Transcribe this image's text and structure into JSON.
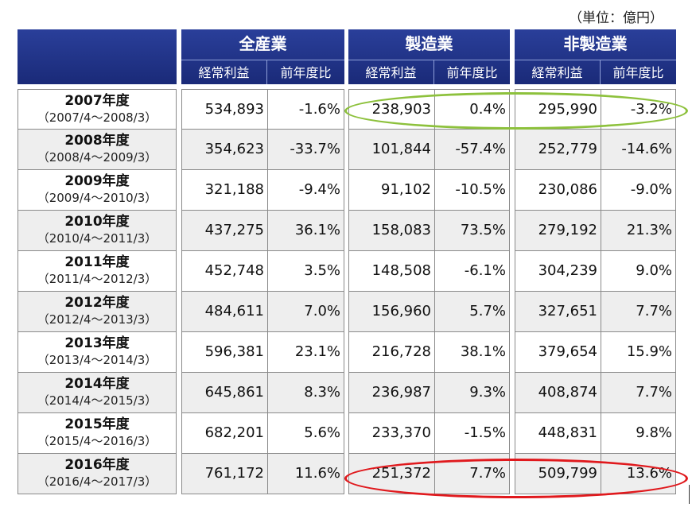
{
  "unit_label": "（単位：億円）",
  "groups": [
    {
      "title": "全産業",
      "sub_left": "経常利益",
      "sub_right": "前年度比"
    },
    {
      "title": "製造業",
      "sub_left": "経常利益",
      "sub_right": "前年度比"
    },
    {
      "title": "非製造業",
      "sub_left": "経常利益",
      "sub_right": "前年度比"
    }
  ],
  "rows": [
    {
      "year": "2007年度",
      "period": "（2007/4～2008/3）",
      "all_profit": "534,893",
      "all_yoy": "-1.6%",
      "mfg_profit": "238,903",
      "mfg_yoy": "0.4%",
      "nonmfg_profit": "295,990",
      "nonmfg_yoy": "-3.2%"
    },
    {
      "year": "2008年度",
      "period": "（2008/4～2009/3）",
      "all_profit": "354,623",
      "all_yoy": "-33.7%",
      "mfg_profit": "101,844",
      "mfg_yoy": "-57.4%",
      "nonmfg_profit": "252,779",
      "nonmfg_yoy": "-14.6%"
    },
    {
      "year": "2009年度",
      "period": "（2009/4～2010/3）",
      "all_profit": "321,188",
      "all_yoy": "-9.4%",
      "mfg_profit": "91,102",
      "mfg_yoy": "-10.5%",
      "nonmfg_profit": "230,086",
      "nonmfg_yoy": "-9.0%"
    },
    {
      "year": "2010年度",
      "period": "（2010/4～2011/3）",
      "all_profit": "437,275",
      "all_yoy": "36.1%",
      "mfg_profit": "158,083",
      "mfg_yoy": "73.5%",
      "nonmfg_profit": "279,192",
      "nonmfg_yoy": "21.3%"
    },
    {
      "year": "2011年度",
      "period": "（2011/4～2012/3）",
      "all_profit": "452,748",
      "all_yoy": "3.5%",
      "mfg_profit": "148,508",
      "mfg_yoy": "-6.1%",
      "nonmfg_profit": "304,239",
      "nonmfg_yoy": "9.0%"
    },
    {
      "year": "2012年度",
      "period": "（2012/4～2013/3）",
      "all_profit": "484,611",
      "all_yoy": "7.0%",
      "mfg_profit": "156,960",
      "mfg_yoy": "5.7%",
      "nonmfg_profit": "327,651",
      "nonmfg_yoy": "7.7%"
    },
    {
      "year": "2013年度",
      "period": "（2013/4～2014/3）",
      "all_profit": "596,381",
      "all_yoy": "23.1%",
      "mfg_profit": "216,728",
      "mfg_yoy": "38.1%",
      "nonmfg_profit": "379,654",
      "nonmfg_yoy": "15.9%"
    },
    {
      "year": "2014年度",
      "period": "（2014/4～2015/3）",
      "all_profit": "645,861",
      "all_yoy": "8.3%",
      "mfg_profit": "236,987",
      "mfg_yoy": "9.3%",
      "nonmfg_profit": "408,874",
      "nonmfg_yoy": "7.7%"
    },
    {
      "year": "2015年度",
      "period": "（2015/4～2016/3）",
      "all_profit": "682,201",
      "all_yoy": "5.6%",
      "mfg_profit": "233,370",
      "mfg_yoy": "-1.5%",
      "nonmfg_profit": "448,831",
      "nonmfg_yoy": "9.8%"
    },
    {
      "year": "2016年度",
      "period": "（2016/4～2017/3）",
      "all_profit": "761,172",
      "all_yoy": "11.6%",
      "mfg_profit": "251,372",
      "mfg_yoy": "7.7%",
      "nonmfg_profit": "509,799",
      "nonmfg_yoy": "13.6%"
    }
  ],
  "highlights": {
    "green_row": "2007年度",
    "red_row": "2016年度",
    "green_color": "#8dc13c",
    "red_color": "#e0191d"
  },
  "colors": {
    "header_blue": "#1f3288",
    "row_shade": "#eeeeee",
    "border": "#8a8a8a"
  },
  "chart_data": {
    "type": "table",
    "title": "",
    "unit": "（単位：億円）",
    "columns": [
      "全産業 経常利益",
      "全産業 前年度比",
      "製造業 経常利益",
      "製造業 前年度比",
      "非製造業 経常利益",
      "非製造業 前年度比"
    ],
    "row_labels": [
      "2007年度",
      "2008年度",
      "2009年度",
      "2010年度",
      "2011年度",
      "2012年度",
      "2013年度",
      "2014年度",
      "2015年度",
      "2016年度"
    ],
    "values": [
      [
        534893,
        -1.6,
        238903,
        0.4,
        295990,
        -3.2
      ],
      [
        354623,
        -33.7,
        101844,
        -57.4,
        252779,
        -14.6
      ],
      [
        321188,
        -9.4,
        91102,
        -10.5,
        230086,
        -9.0
      ],
      [
        437275,
        36.1,
        158083,
        73.5,
        279192,
        21.3
      ],
      [
        452748,
        3.5,
        148508,
        -6.1,
        304239,
        9.0
      ],
      [
        484611,
        7.0,
        156960,
        5.7,
        327651,
        7.7
      ],
      [
        596381,
        23.1,
        216728,
        38.1,
        379654,
        15.9
      ],
      [
        645861,
        8.3,
        236987,
        9.3,
        408874,
        7.7
      ],
      [
        682201,
        5.6,
        233370,
        -1.5,
        448831,
        9.8
      ],
      [
        761172,
        11.6,
        251372,
        7.7,
        509799,
        13.6
      ]
    ]
  }
}
